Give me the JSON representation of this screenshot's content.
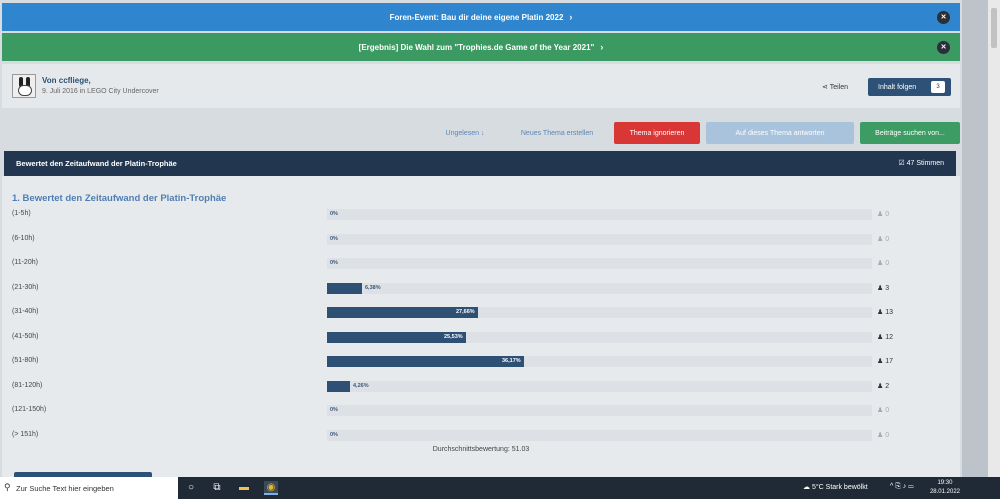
{
  "banners": [
    {
      "text": "Foren-Event: Bau dir deine eigene Platin 2022",
      "color": "#2f86cf"
    },
    {
      "text": "[Ergebnis] Die Wahl zum \"Trophies.de Game of the Year 2021\"",
      "color": "#3b9a62"
    }
  ],
  "topic": {
    "author": "Von ccfliege,",
    "meta": "9. Juli 2016 in LEGO City Undercover",
    "share_label": "Teilen",
    "follow_label": "Inhalt folgen",
    "follow_count": "3"
  },
  "actions": {
    "unread": "Ungelesen",
    "new_topic": "Neues Thema erstellen",
    "ignore": "Thema ignorieren",
    "reply": "Auf dieses Thema antworten",
    "search": "Beiträge suchen von..."
  },
  "poll": {
    "header": "Bewertet den Zeitaufwand der Platin-Trophäe",
    "votes": "47 Stimmen",
    "question": "1. Bewertet den Zeitaufwand der Platin-Trophäe",
    "average": "Durchschnittsbewertung: 51.03"
  },
  "chart_data": {
    "type": "bar",
    "categories": [
      "(1-5h)",
      "(6-10h)",
      "(11-20h)",
      "(21-30h)",
      "(31-40h)",
      "(41-50h)",
      "(51-80h)",
      "(81-120h)",
      "(121-150h)",
      "(> 151h)"
    ],
    "percent_labels": [
      "0%",
      "0%",
      "0%",
      "6,38%",
      "27,66%",
      "25,53%",
      "36,17%",
      "4,26%",
      "0%",
      "0%"
    ],
    "values": [
      0,
      0,
      0,
      6.38,
      27.66,
      25.53,
      36.17,
      4.26,
      0,
      0
    ],
    "counts": [
      "0",
      "0",
      "0",
      "3",
      "13",
      "12",
      "17",
      "2",
      "0",
      "0"
    ],
    "ylim": [
      0,
      100
    ]
  },
  "taskbar": {
    "search_placeholder": "Zur Suche Text hier eingeben",
    "weather": "5°C  Stark bewölkt",
    "time": "19:30",
    "date": "28.01.2022"
  }
}
